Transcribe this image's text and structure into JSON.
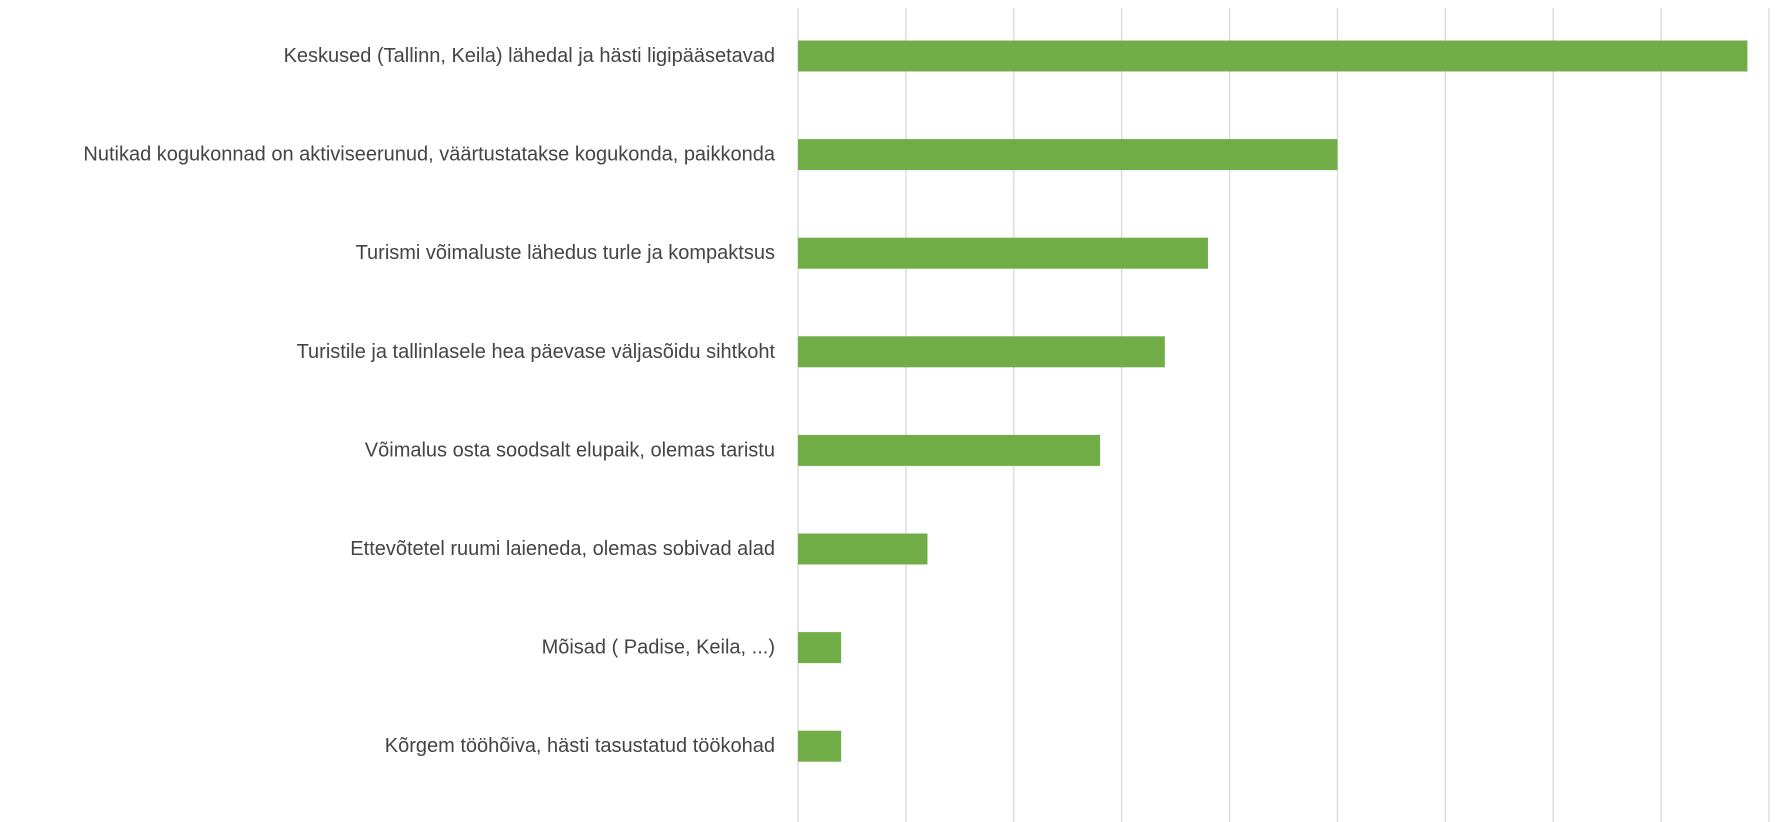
{
  "chart_data": {
    "type": "bar",
    "orientation": "horizontal",
    "title": "",
    "xlabel": "",
    "ylabel": "",
    "grid": true,
    "x_tick_labels_shown": false,
    "categories": [
      "Keskused (Tallinn, Keila) lähedal ja hästi ligipääsetavad",
      "Nutikad kogukonnad on aktiviseerunud, väärtustatakse kogukonda, paikkonda",
      "Turismi võimaluste lähedus turle ja kompaktsus",
      "Turistile ja tallinlasele hea päevase väljasõidu sihtkoht",
      "Võimalus osta soodsalt elupaik, olemas taristu",
      "Ettevõtetel ruumi laieneda, olemas sobivad alad",
      "Mõisad ( Padise, Keila, ...)",
      "Kõrgem tööhõiva, hästi tasustatud töökohad"
    ],
    "values": [
      8.8,
      5,
      3.8,
      3.4,
      2.8,
      1.2,
      0.4,
      0.4
    ],
    "xlim": [
      0,
      9
    ],
    "bar_color": "#70ad47"
  }
}
